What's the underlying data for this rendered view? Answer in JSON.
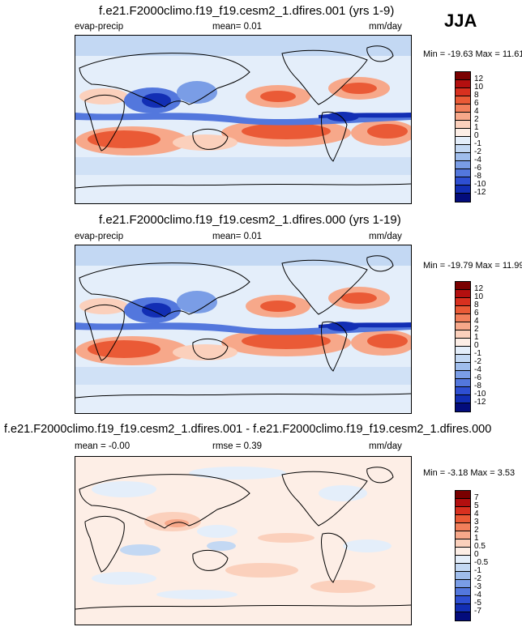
{
  "season": "JJA",
  "panels": [
    {
      "title": "f.e21.F2000climo.f19_f19.cesm2_1.dfires.001 (yrs 1-9)",
      "left_label": "evap-precip",
      "center_label": "mean=  0.01",
      "units": "mm/day",
      "minmax": "Min = -19.63 Max = 11.61",
      "levels": [
        "12",
        "10",
        "8",
        "6",
        "4",
        "2",
        "1",
        "0",
        "-1",
        "-2",
        "-4",
        "-6",
        "-8",
        "-10",
        "-12"
      ],
      "colors": [
        "#7a0000",
        "#b30f0f",
        "#d8301f",
        "#ea5a36",
        "#f27f5b",
        "#f7a88a",
        "#fbd0bc",
        "#fdeee6",
        "#e4eefa",
        "#c3d8f3",
        "#9fbdec",
        "#7a9de6",
        "#5377dd",
        "#2e4fd2",
        "#122eb4",
        "#030c7c"
      ]
    },
    {
      "title": "f.e21.F2000climo.f19_f19.cesm2_1.dfires.000 (yrs 1-19)",
      "left_label": "evap-precip",
      "center_label": "mean=  0.01",
      "units": "mm/day",
      "minmax": "Min = -19.79 Max = 11.99",
      "levels": [
        "12",
        "10",
        "8",
        "6",
        "4",
        "2",
        "1",
        "0",
        "-1",
        "-2",
        "-4",
        "-6",
        "-8",
        "-10",
        "-12"
      ],
      "colors": [
        "#7a0000",
        "#b30f0f",
        "#d8301f",
        "#ea5a36",
        "#f27f5b",
        "#f7a88a",
        "#fbd0bc",
        "#fdeee6",
        "#e4eefa",
        "#c3d8f3",
        "#9fbdec",
        "#7a9de6",
        "#5377dd",
        "#2e4fd2",
        "#122eb4",
        "#030c7c"
      ]
    },
    {
      "title": "f.e21.F2000climo.f19_f19.cesm2_1.dfires.001 - f.e21.F2000climo.f19_f19.cesm2_1.dfires.000",
      "left_label": "mean = -0.00",
      "center_label": "rmse =  0.39",
      "units": "mm/day",
      "minmax": "Min = -3.18 Max =  3.53",
      "levels": [
        "7",
        "5",
        "4",
        "3",
        "2",
        "1",
        "0.5",
        "0",
        "-0.5",
        "-1",
        "-2",
        "-3",
        "-4",
        "-5",
        "-7"
      ],
      "colors": [
        "#7a0000",
        "#b30f0f",
        "#d8301f",
        "#ea5a36",
        "#f27f5b",
        "#f7a88a",
        "#fbd0bc",
        "#fdeee6",
        "#e4eefa",
        "#c3d8f3",
        "#9fbdec",
        "#7a9de6",
        "#5377dd",
        "#2e4fd2",
        "#122eb4",
        "#030c7c"
      ]
    }
  ]
}
